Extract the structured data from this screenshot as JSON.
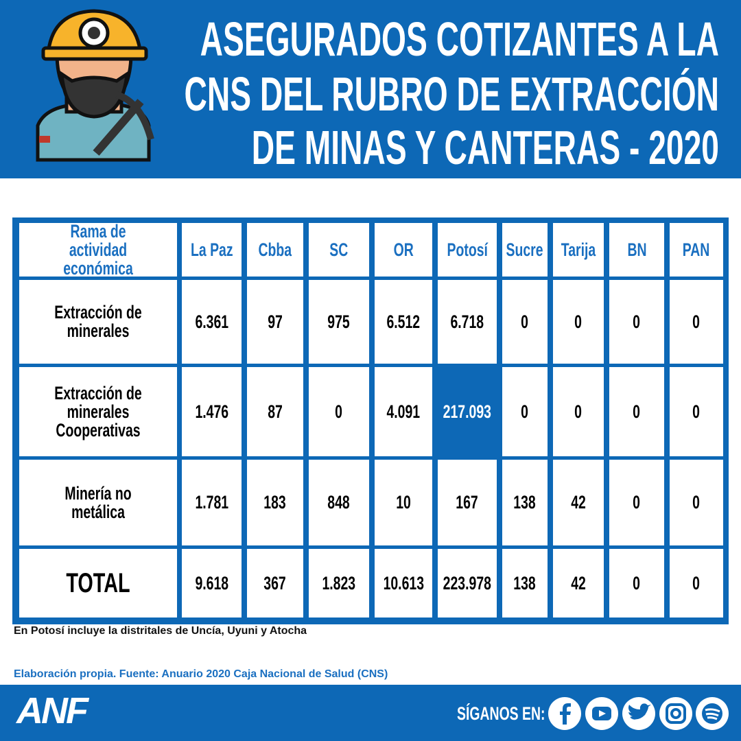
{
  "header": {
    "title": [
      "ASEGURADOS COTIZANTES A LA",
      "CNS DEL RUBRO DE EXTRACCIÓN",
      "DE MINAS Y CANTERAS - 2020"
    ]
  },
  "table": {
    "columns": [
      "Rama de actividad económica",
      "La Paz",
      "Cbba",
      "SC",
      "OR",
      "Potosí",
      "Sucre",
      "Tarija",
      "BN",
      "PAN"
    ],
    "rows": [
      [
        "Extracción de minerales",
        "6.361",
        "97",
        "975",
        "6.512",
        "6.718",
        "0",
        "0",
        "0",
        "0"
      ],
      [
        "Extracción de minerales Cooperativas",
        "1.476",
        "87",
        "0",
        "4.091",
        "217.093",
        "0",
        "0",
        "0",
        "0"
      ],
      [
        "Minería no metálica",
        "1.781",
        "183",
        "848",
        "10",
        "167",
        "138",
        "42",
        "0",
        "0"
      ],
      [
        "TOTAL",
        "9.618",
        "367",
        "1.823",
        "10.613",
        "223.978",
        "138",
        "42",
        "0",
        "0"
      ]
    ]
  },
  "note": "En Potosí incluye la distritales de Uncía, Uyuni y Atocha",
  "source": "Elaboración propia. Fuente: Anuario 2020 Caja Nacional de Salud (CNS)",
  "footer": {
    "logo": "ANF",
    "follow": "SÍGANOS EN:"
  }
}
